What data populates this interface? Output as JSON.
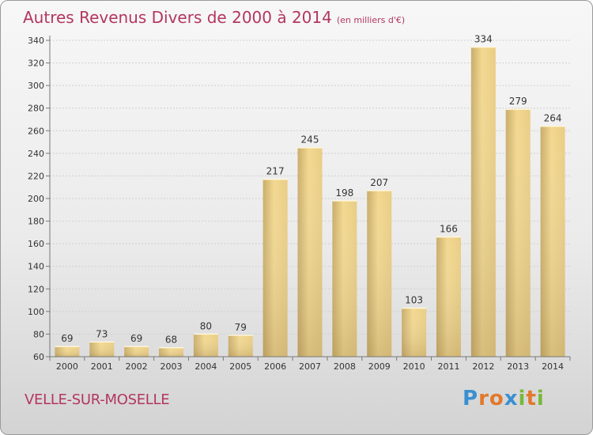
{
  "header": {
    "title": "Autres Revenus Divers de 2000 à 2014",
    "unit": "(en milliers d'€)"
  },
  "footer": {
    "commune": "VELLE-SUR-MOSELLE",
    "brand": "Proxiti"
  },
  "colors": {
    "title": "#b3365f",
    "bar_light": "#f2d890",
    "bar_dark": "#c9ad6a",
    "brand_letters": [
      "#3a8fd1",
      "#e2782c",
      "#e2782c",
      "#3a8fd1",
      "#79b83a",
      "#e2782c",
      "#79b83a"
    ]
  },
  "chart_data": {
    "type": "bar",
    "categories": [
      "2000",
      "2001",
      "2002",
      "2003",
      "2004",
      "2005",
      "2006",
      "2007",
      "2008",
      "2009",
      "2010",
      "2011",
      "2012",
      "2013",
      "2014"
    ],
    "values": [
      69,
      73,
      69,
      68,
      80,
      79,
      217,
      245,
      198,
      207,
      103,
      166,
      334,
      279,
      264
    ],
    "title": "Autres Revenus Divers de 2000 à 2014",
    "xlabel": "",
    "ylabel": "",
    "ylim": [
      60,
      340
    ],
    "yticks": [
      60,
      80,
      100,
      120,
      140,
      160,
      180,
      200,
      220,
      240,
      260,
      280,
      300,
      320,
      340
    ],
    "grid": "horizontal",
    "data_labels": true
  }
}
